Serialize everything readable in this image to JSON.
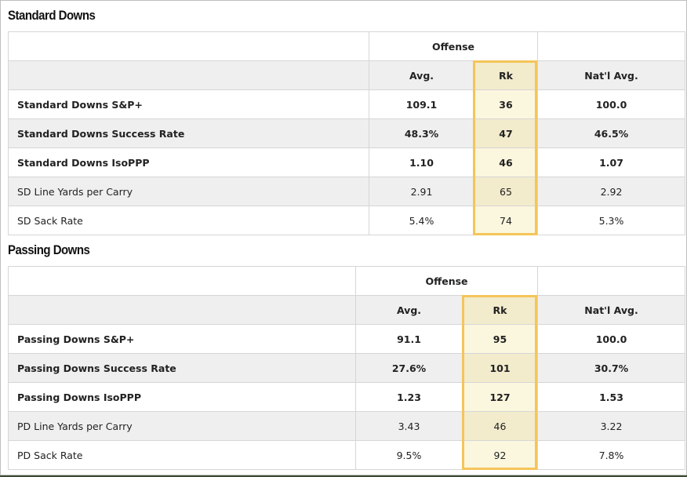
{
  "sections": [
    {
      "title": "Standard Downs",
      "group_header": "Offense",
      "columns": [
        "Avg.",
        "Rk",
        "Nat'l Avg."
      ],
      "rows": [
        {
          "label": "Standard Downs S&P+",
          "avg": "109.1",
          "rk": "36",
          "natl": "100.0",
          "bold": true
        },
        {
          "label": "Standard Downs Success Rate",
          "avg": "48.3%",
          "rk": "47",
          "natl": "46.5%",
          "bold": true
        },
        {
          "label": "Standard Downs IsoPPP",
          "avg": "1.10",
          "rk": "46",
          "natl": "1.07",
          "bold": true
        },
        {
          "label": "SD Line Yards per Carry",
          "avg": "2.91",
          "rk": "65",
          "natl": "2.92",
          "bold": false
        },
        {
          "label": "SD Sack Rate",
          "avg": "5.4%",
          "rk": "74",
          "natl": "5.3%",
          "bold": false
        }
      ]
    },
    {
      "title": "Passing Downs",
      "group_header": "Offense",
      "columns": [
        "Avg.",
        "Rk",
        "Nat'l Avg."
      ],
      "rows": [
        {
          "label": "Passing Downs S&P+",
          "avg": "91.1",
          "rk": "95",
          "natl": "100.0",
          "bold": true
        },
        {
          "label": "Passing Downs Success Rate",
          "avg": "27.6%",
          "rk": "101",
          "natl": "30.7%",
          "bold": true
        },
        {
          "label": "Passing Downs IsoPPP",
          "avg": "1.23",
          "rk": "127",
          "natl": "1.53",
          "bold": true
        },
        {
          "label": "PD Line Yards per Carry",
          "avg": "3.43",
          "rk": "46",
          "natl": "3.22",
          "bold": false
        },
        {
          "label": "PD Sack Rate",
          "avg": "9.5%",
          "rk": "92",
          "natl": "7.8%",
          "bold": false
        }
      ]
    }
  ],
  "colors": {
    "rank_highlight": "#f4c55a",
    "row_alt": "#efefef"
  }
}
